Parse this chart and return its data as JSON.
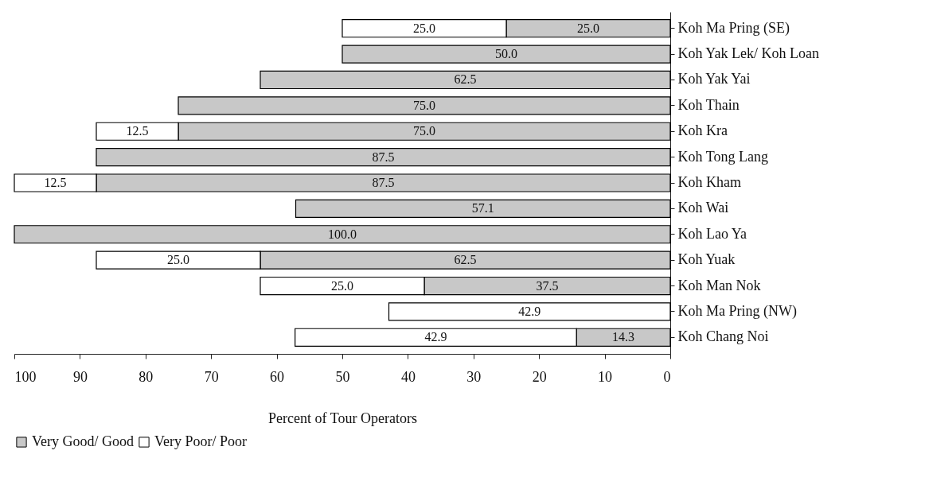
{
  "chart_data": {
    "type": "bar",
    "orientation": "horizontal",
    "stacked": true,
    "xlabel": "Percent of Tour Operators",
    "categories": [
      "Koh Ma Pring (SE)",
      "Koh Yak Lek/ Koh Loan",
      "Koh Yak Yai",
      "Koh Thain",
      "Koh Kra",
      "Koh Tong Lang",
      "Koh Kham",
      "Koh Wai",
      "Koh Lao Ya",
      "Koh Yuak",
      "Koh Man Nok",
      "Koh Ma Pring (NW)",
      "Koh Chang Noi"
    ],
    "series": [
      {
        "name": "Very Good/ Good",
        "color": "#c8c8c8",
        "values": [
          25.0,
          50.0,
          62.5,
          75.0,
          75.0,
          87.5,
          87.5,
          57.1,
          100.0,
          62.5,
          37.5,
          null,
          14.3
        ],
        "value_labels": [
          "25.0",
          "50.0",
          "62.5",
          "75.0",
          "75.0",
          "87.5",
          "87.5",
          "57.1",
          "100.0",
          "62.5",
          "37.5",
          null,
          "14.3"
        ]
      },
      {
        "name": "Very Poor/ Poor",
        "color": "#ffffff",
        "values": [
          25.0,
          null,
          null,
          null,
          12.5,
          null,
          12.5,
          null,
          null,
          25.0,
          25.0,
          42.9,
          42.9
        ],
        "value_labels": [
          "25.0",
          null,
          null,
          null,
          "12.5",
          null,
          "12.5",
          null,
          null,
          "25.0",
          "25.0",
          "42.9",
          "42.9"
        ]
      }
    ],
    "xlim": [
      100,
      0
    ],
    "xticks": [
      100,
      90,
      80,
      70,
      60,
      50,
      40,
      30,
      20,
      10,
      0
    ],
    "grid": false,
    "legend": "bottom"
  }
}
